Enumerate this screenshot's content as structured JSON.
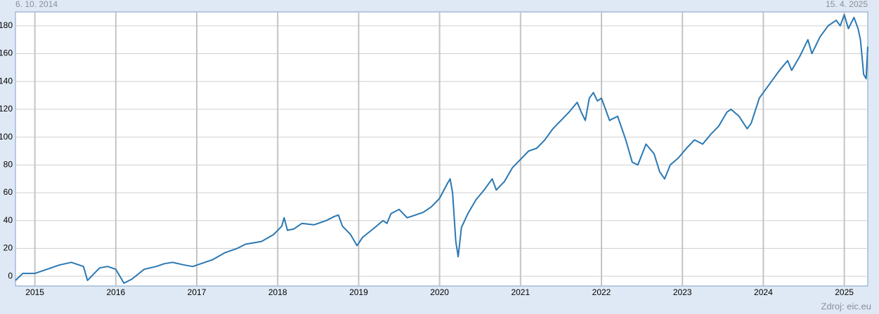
{
  "chart_data": {
    "type": "line",
    "start_label": "6. 10. 2014",
    "end_label": "15. 4. 2025",
    "source": "Zdroj: eic.eu",
    "xlim": [
      2014.76,
      2025.29
    ],
    "xticks": [
      2015,
      2016,
      2017,
      2018,
      2019,
      2020,
      2021,
      2022,
      2023,
      2024,
      2025
    ],
    "ylim": [
      -7,
      190
    ],
    "yticks": [
      0,
      20,
      40,
      60,
      80,
      100,
      120,
      140,
      160,
      180
    ],
    "grid": true,
    "series": [
      {
        "color": "#2a78b3",
        "x": [
          2014.76,
          2014.85,
          2015.0,
          2015.1,
          2015.3,
          2015.45,
          2015.6,
          2015.65,
          2015.8,
          2015.9,
          2016.0,
          2016.1,
          2016.2,
          2016.35,
          2016.5,
          2016.6,
          2016.7,
          2016.85,
          2016.95,
          2017.1,
          2017.2,
          2017.35,
          2017.5,
          2017.6,
          2017.8,
          2017.95,
          2018.05,
          2018.08,
          2018.12,
          2018.2,
          2018.3,
          2018.45,
          2018.6,
          2018.7,
          2018.75,
          2018.8,
          2018.9,
          2018.98,
          2019.05,
          2019.2,
          2019.3,
          2019.35,
          2019.4,
          2019.5,
          2019.6,
          2019.7,
          2019.8,
          2019.9,
          2020.0,
          2020.1,
          2020.13,
          2020.16,
          2020.2,
          2020.23,
          2020.27,
          2020.35,
          2020.45,
          2020.55,
          2020.65,
          2020.7,
          2020.8,
          2020.9,
          2021.0,
          2021.1,
          2021.2,
          2021.3,
          2021.4,
          2021.5,
          2021.6,
          2021.7,
          2021.75,
          2021.8,
          2021.85,
          2021.9,
          2021.95,
          2022.0,
          2022.05,
          2022.1,
          2022.2,
          2022.3,
          2022.38,
          2022.45,
          2022.55,
          2022.65,
          2022.72,
          2022.78,
          2022.85,
          2022.95,
          2023.05,
          2023.15,
          2023.25,
          2023.35,
          2023.45,
          2023.55,
          2023.6,
          2023.7,
          2023.8,
          2023.85,
          2023.95,
          2024.0,
          2024.1,
          2024.2,
          2024.3,
          2024.35,
          2024.45,
          2024.55,
          2024.6,
          2024.7,
          2024.8,
          2024.9,
          2024.95,
          2025.0,
          2025.05,
          2025.12,
          2025.17,
          2025.2,
          2025.24,
          2025.27,
          2025.29
        ],
        "values": [
          -3,
          2,
          2,
          4,
          8,
          10,
          7,
          -3,
          6,
          7,
          5,
          -5,
          -2,
          5,
          7,
          9,
          10,
          8,
          7,
          10,
          12,
          17,
          20,
          23,
          25,
          30,
          36,
          42,
          33,
          34,
          38,
          37,
          40,
          43,
          44,
          36,
          30,
          22,
          28,
          35,
          40,
          38,
          45,
          48,
          42,
          44,
          46,
          50,
          56,
          67,
          70,
          60,
          25,
          14,
          35,
          45,
          55,
          62,
          70,
          62,
          68,
          78,
          84,
          90,
          92,
          98,
          106,
          112,
          118,
          125,
          118,
          112,
          128,
          132,
          126,
          128,
          120,
          112,
          115,
          98,
          82,
          80,
          95,
          88,
          75,
          70,
          80,
          85,
          92,
          98,
          95,
          102,
          108,
          118,
          120,
          115,
          106,
          110,
          128,
          132,
          140,
          148,
          155,
          148,
          158,
          170,
          160,
          172,
          180,
          184,
          180,
          188,
          178,
          186,
          178,
          170,
          145,
          142,
          165
        ]
      }
    ]
  }
}
